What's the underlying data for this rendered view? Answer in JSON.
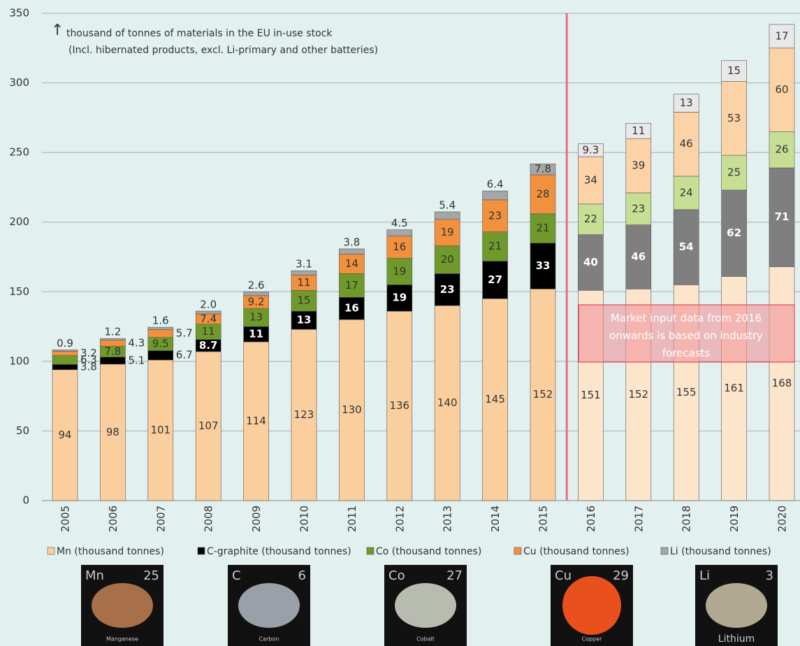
{
  "chart_data": {
    "type": "stacked_bar",
    "axis_title": [
      "thousand of tonnes of materials in the EU in-use stock",
      "(Incl. hibernated products, excl. Li-primary and other batteries)"
    ],
    "annotation": "Market input data from 2016 onwards is based on industry forecasts",
    "categories": [
      "2005",
      "2006",
      "2007",
      "2008",
      "2009",
      "2010",
      "2011",
      "2012",
      "2013",
      "2014",
      "2015",
      "2016",
      "2017",
      "2018",
      "2019",
      "2020"
    ],
    "ylim": [
      0,
      350
    ],
    "yticks": [
      0,
      50,
      100,
      150,
      200,
      250,
      300,
      350
    ],
    "grid": true,
    "series": [
      {
        "name": "Mn (thousand tonnes)",
        "color": "#fbcf9d",
        "values": [
          94,
          98,
          101,
          107,
          114,
          123,
          130,
          136,
          140,
          145,
          152,
          151,
          152,
          155,
          161,
          168
        ],
        "colors": [
          "#fbcf9d",
          "#fbcf9d",
          "#fbcf9d",
          "#fbcf9d",
          "#fbcf9d",
          "#fbcf9d",
          "#fbcf9d",
          "#fbcf9d",
          "#fbcf9d",
          "#fbcf9d",
          "#fbcf9d",
          "#fde5cc",
          "#fde5cc",
          "#fde5cc",
          "#fde5cc",
          "#fde5cc"
        ]
      },
      {
        "name": "C-graphite (thousand tonnes)",
        "color": "#000000",
        "values": [
          3.8,
          5.1,
          6.7,
          8.7,
          11,
          13,
          16,
          19,
          23,
          27,
          33,
          40,
          46,
          54,
          62,
          71
        ],
        "colors": [
          "#000000",
          "#000000",
          "#000000",
          "#000000",
          "#000000",
          "#000000",
          "#000000",
          "#000000",
          "#000000",
          "#000000",
          "#000000",
          "#7f7f7f",
          "#7f7f7f",
          "#7f7f7f",
          "#7f7f7f",
          "#7f7f7f"
        ]
      },
      {
        "name": "Co (thousand tonnes)",
        "color": "#6f9a2b",
        "values": [
          6.3,
          7.8,
          9.5,
          11,
          13,
          15,
          17,
          19,
          20,
          21,
          21,
          22,
          23,
          24,
          25,
          26
        ],
        "colors": [
          "#6f9a2b",
          "#6f9a2b",
          "#6f9a2b",
          "#6f9a2b",
          "#6f9a2b",
          "#6f9a2b",
          "#6f9a2b",
          "#6f9a2b",
          "#6f9a2b",
          "#6f9a2b",
          "#6f9a2b",
          "#c9de95",
          "#c9de95",
          "#c9de95",
          "#c9de95",
          "#c9de95"
        ]
      },
      {
        "name": "Cu (thousand tonnes)",
        "color": "#f1913d",
        "values": [
          3.2,
          4.3,
          5.7,
          7.4,
          9.2,
          11,
          14,
          16,
          19,
          23,
          28,
          34,
          39,
          46,
          53,
          60
        ],
        "colors": [
          "#f1913d",
          "#f1913d",
          "#f1913d",
          "#f1913d",
          "#f1913d",
          "#f1913d",
          "#f1913d",
          "#f1913d",
          "#f1913d",
          "#f1913d",
          "#f1913d",
          "#fcd3a6",
          "#fcd3a6",
          "#fcd3a6",
          "#fcd3a6",
          "#fcd3a6"
        ]
      },
      {
        "name": "Li (thousand tonnes)",
        "color": "#a6a6a6",
        "values": [
          0.9,
          1.2,
          1.6,
          2.0,
          2.6,
          3.1,
          3.8,
          4.5,
          5.4,
          6.4,
          7.8,
          9.3,
          11,
          13,
          15,
          17
        ],
        "value_labels": [
          "0.9",
          "1.2",
          "1.6",
          "2.0",
          "2.6",
          "3.1",
          "3.8",
          "4.5",
          "5.4",
          "6.4",
          "7.8",
          "9.3",
          "11",
          "13",
          "15",
          "17"
        ],
        "colors": [
          "#a6a6a6",
          "#a6a6a6",
          "#a6a6a6",
          "#a6a6a6",
          "#a6a6a6",
          "#a6a6a6",
          "#a6a6a6",
          "#a6a6a6",
          "#a6a6a6",
          "#a6a6a6",
          "#a6a6a6",
          "#e8e8e8",
          "#e8e8e8",
          "#e8e8e8",
          "#e8e8e8",
          "#e8e8e8"
        ]
      }
    ]
  },
  "element_images": [
    {
      "symbol": "Mn",
      "number": 25,
      "name": "Manganese"
    },
    {
      "symbol": "C",
      "number": 6,
      "name": "Carbon"
    },
    {
      "symbol": "Co",
      "number": 27,
      "name": "Cobalt"
    },
    {
      "symbol": "Cu",
      "number": 29,
      "name": "Copper"
    },
    {
      "symbol": "Li",
      "number": 3,
      "name": "Lithium"
    }
  ]
}
